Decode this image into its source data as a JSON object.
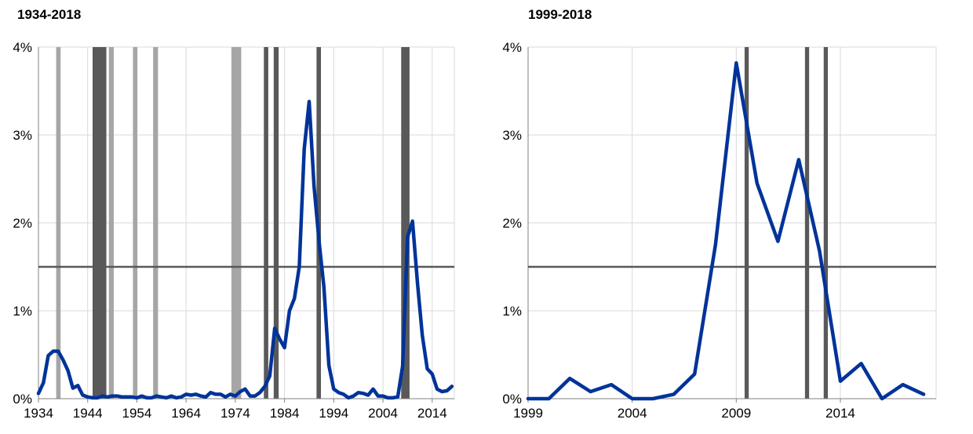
{
  "chart_data": [
    {
      "type": "line",
      "title": "1934-2018",
      "xlabel": "",
      "ylabel": "",
      "xlim": [
        1934,
        2018.5
      ],
      "ylim": [
        0,
        4
      ],
      "x_ticks": [
        1934,
        1944,
        1954,
        1964,
        1974,
        1984,
        1994,
        2004,
        2014
      ],
      "y_ticks": [
        "0%",
        "1%",
        "2%",
        "3%",
        "4%"
      ],
      "grid": "vertical and horizontal",
      "threshold": 1.5,
      "bands": [
        {
          "start": 1937.6,
          "end": 1938.5,
          "shade": "light"
        },
        {
          "start": 1945.0,
          "end": 1947.8,
          "shade": "dark"
        },
        {
          "start": 1948.3,
          "end": 1949.3,
          "shade": "light"
        },
        {
          "start": 1953.2,
          "end": 1954.1,
          "shade": "light"
        },
        {
          "start": 1957.3,
          "end": 1958.3,
          "shade": "light"
        },
        {
          "start": 1973.2,
          "end": 1975.2,
          "shade": "light"
        },
        {
          "start": 1979.8,
          "end": 1980.7,
          "shade": "dark"
        },
        {
          "start": 1981.8,
          "end": 1982.8,
          "shade": "dark"
        },
        {
          "start": 1990.5,
          "end": 1991.4,
          "shade": "dark"
        },
        {
          "start": 2007.7,
          "end": 2009.4,
          "shade": "dark"
        }
      ],
      "series": [
        {
          "color": "#003399",
          "x": [
            1934,
            1935,
            1936,
            1937,
            1938,
            1939,
            1940,
            1941,
            1942,
            1943,
            1944,
            1945,
            1946,
            1947,
            1948,
            1949,
            1950,
            1951,
            1952,
            1953,
            1954,
            1955,
            1956,
            1957,
            1958,
            1959,
            1960,
            1961,
            1962,
            1963,
            1964,
            1965,
            1966,
            1967,
            1968,
            1969,
            1970,
            1971,
            1972,
            1973,
            1974,
            1975,
            1976,
            1977,
            1978,
            1979,
            1980,
            1981,
            1982,
            1983,
            1984,
            1985,
            1986,
            1987,
            1988,
            1989,
            1990,
            1991,
            1992,
            1993,
            1994,
            1995,
            1996,
            1997,
            1998,
            1999,
            2000,
            2001,
            2002,
            2003,
            2004,
            2005,
            2006,
            2007,
            2008,
            2009,
            2010,
            2011,
            2012,
            2013,
            2014,
            2015,
            2016,
            2017,
            2018
          ],
          "values": [
            0.06,
            0.18,
            0.49,
            0.54,
            0.54,
            0.44,
            0.32,
            0.12,
            0.15,
            0.04,
            0.02,
            0.01,
            0.01,
            0.03,
            0.02,
            0.03,
            0.03,
            0.02,
            0.02,
            0.02,
            0.01,
            0.03,
            0.01,
            0.01,
            0.03,
            0.02,
            0.01,
            0.03,
            0.01,
            0.02,
            0.05,
            0.04,
            0.05,
            0.03,
            0.02,
            0.07,
            0.05,
            0.05,
            0.02,
            0.05,
            0.03,
            0.08,
            0.11,
            0.03,
            0.03,
            0.07,
            0.14,
            0.26,
            0.8,
            0.68,
            0.58,
            1.0,
            1.14,
            1.5,
            2.84,
            3.38,
            2.42,
            1.8,
            1.27,
            0.38,
            0.11,
            0.07,
            0.05,
            0.01,
            0.03,
            0.07,
            0.06,
            0.04,
            0.11,
            0.03,
            0.03,
            0.01,
            0.01,
            0.02,
            0.37,
            1.84,
            2.02,
            1.32,
            0.72,
            0.34,
            0.28,
            0.11,
            0.08,
            0.09,
            0.14
          ]
        }
      ]
    },
    {
      "type": "line",
      "title": "1999-2018",
      "xlabel": "",
      "ylabel": "",
      "xlim": [
        1999,
        2018.6
      ],
      "ylim": [
        0,
        4
      ],
      "x_ticks": [
        1999,
        2004,
        2009,
        2014
      ],
      "y_ticks": [
        "0%",
        "1%",
        "2%",
        "3%",
        "4%"
      ],
      "grid": "vertical and horizontal",
      "threshold": 1.5,
      "bands": [
        {
          "start": 2009.4,
          "end": 2009.6,
          "shade": "dark"
        },
        {
          "start": 2012.3,
          "end": 2012.5,
          "shade": "dark"
        },
        {
          "start": 2013.2,
          "end": 2013.4,
          "shade": "dark"
        }
      ],
      "series": [
        {
          "color": "#003399",
          "x": [
            1999,
            2000,
            2001,
            2002,
            2003,
            2004,
            2005,
            2006,
            2007,
            2008,
            2009,
            2010,
            2011,
            2012,
            2013,
            2014,
            2015,
            2016,
            2017,
            2018
          ],
          "values": [
            0.0,
            0.0,
            0.23,
            0.08,
            0.16,
            0.0,
            0.0,
            0.05,
            0.28,
            1.75,
            3.82,
            2.45,
            1.79,
            2.72,
            1.68,
            0.2,
            0.4,
            0.0,
            0.16,
            0.05
          ]
        }
      ]
    }
  ]
}
